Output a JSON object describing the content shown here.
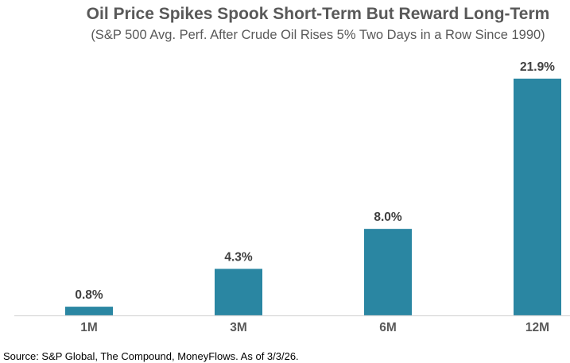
{
  "chart_data": {
    "type": "bar",
    "title": "Oil Price Spikes Spook Short-Term But Reward Long-Term",
    "subtitle": "(S&P 500 Avg. Perf. After Crude Oil Rises 5% Two Days in a Row Since 1990)",
    "categories": [
      "1M",
      "3M",
      "6M",
      "12M"
    ],
    "values": [
      0.8,
      4.3,
      8.0,
      21.9
    ],
    "data_labels": [
      "0.8%",
      "4.3%",
      "8.0%",
      "21.9%"
    ],
    "xlabel": "",
    "ylabel": "",
    "ylim": [
      0,
      21.9
    ],
    "grid": false,
    "bar_color": "#2A86A2",
    "source": "Source: S&P Global, The Compound, MoneyFlows. As of 3/3/26."
  }
}
